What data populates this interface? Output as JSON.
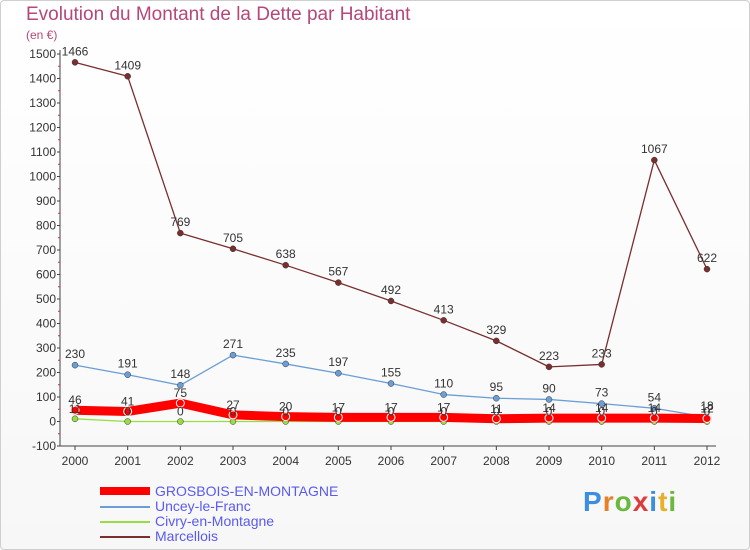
{
  "header": {
    "title": "Evolution du Montant de la Dette par Habitant",
    "subtitle": "(en €)"
  },
  "logo": {
    "text": "Proxiti"
  },
  "chart_data": {
    "type": "line",
    "title": "Evolution du Montant de la Dette par Habitant",
    "subtitle": "(en €)",
    "xlabel": "",
    "ylabel": "",
    "x": [
      "2000",
      "2001",
      "2002",
      "2003",
      "2004",
      "2005",
      "2006",
      "2007",
      "2008",
      "2009",
      "2010",
      "2011",
      "2012"
    ],
    "ylim": [
      -100,
      1500
    ],
    "yticks": [
      -100,
      0,
      100,
      200,
      300,
      400,
      500,
      600,
      700,
      800,
      900,
      1000,
      1100,
      1200,
      1300,
      1400,
      1500
    ],
    "grid": false,
    "legend": "bottom-left",
    "series": [
      {
        "name": "GROSBOIS-EN-MONTAGNE",
        "color": "#ff0000",
        "values": [
          46,
          41,
          75,
          27,
          20,
          17,
          17,
          17,
          11,
          14,
          14,
          14,
          12
        ],
        "labels": [
          "46",
          "41",
          "75",
          "27",
          "20",
          "17",
          "17",
          "17",
          "11",
          "14",
          "14",
          "14",
          "12"
        ]
      },
      {
        "name": "Uncey-le-Franc",
        "color": "#6a9ed6",
        "values": [
          230,
          191,
          148,
          271,
          235,
          197,
          155,
          110,
          95,
          90,
          73,
          54,
          18
        ],
        "labels": [
          "230",
          "191",
          "148",
          "271",
          "235",
          "197",
          "155",
          "110",
          "95",
          "90",
          "73",
          "54",
          "18"
        ]
      },
      {
        "name": "Civry-en-Montagne",
        "color": "#99dd44",
        "values": [
          11,
          0,
          0,
          0,
          0,
          0,
          0,
          0,
          0,
          0,
          0,
          0,
          0
        ],
        "labels": [
          "11",
          "0",
          "0",
          "0",
          "0",
          "0",
          "0",
          "0",
          "0",
          "0",
          "0",
          "0",
          "0"
        ]
      },
      {
        "name": "Marcellois",
        "color": "#7a2e2e",
        "values": [
          1466,
          1409,
          769,
          705,
          638,
          567,
          492,
          413,
          329,
          223,
          233,
          1067,
          622
        ],
        "labels": [
          "1466",
          "1409",
          "769",
          "705",
          "638",
          "567",
          "492",
          "413",
          "329",
          "223",
          "233",
          "1067",
          "622"
        ]
      }
    ]
  }
}
